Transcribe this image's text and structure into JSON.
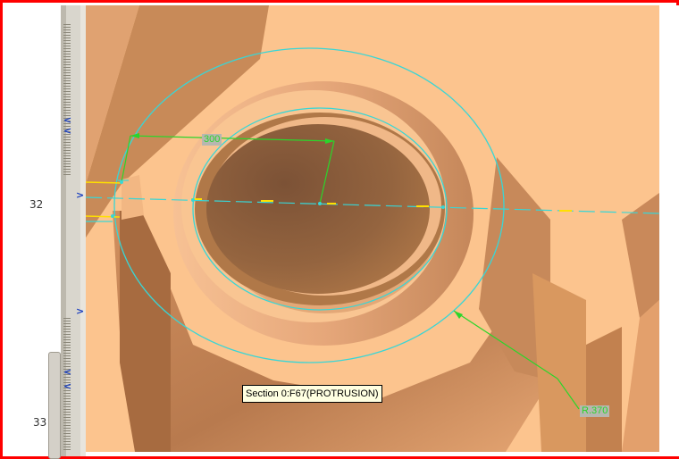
{
  "left_panel": {
    "row_numbers": [
      "32",
      "33"
    ]
  },
  "viewport": {
    "dimension_top": "300",
    "dimension_radius": "R.370",
    "tooltip": "Section 0:F67(PROTRUSION)"
  },
  "colors": {
    "frame_border": "#ff0000",
    "model_surface": "#fcc48e",
    "sketch_circle": "#38d6d6",
    "dimension_line": "#2bd52b",
    "centerline_highlight": "#ffe000"
  },
  "icons": [
    "chevron-left-icon",
    "chevron-right-icon"
  ]
}
